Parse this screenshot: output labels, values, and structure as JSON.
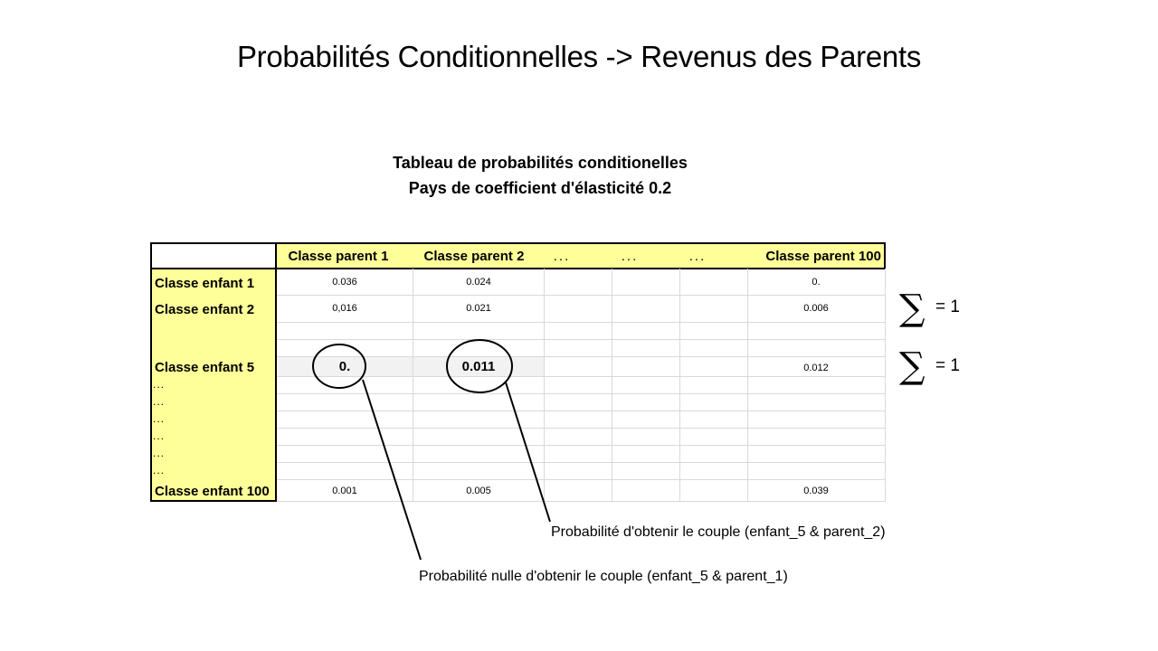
{
  "slide": {
    "title": "Probabilités Conditionnelles -> Revenus des Parents"
  },
  "table": {
    "caption_line1": "Tableau de probabilités conditionelles",
    "caption_line2": "Pays de coefficient d'élasticité   0.2",
    "column_headers": [
      "Classe parent 1",
      "Classe parent 2",
      "...",
      "...",
      "...",
      "Classe parent 100"
    ],
    "rows": {
      "r1": {
        "label": "Classe enfant 1",
        "p1": "0.036",
        "p2": "0.024",
        "p100": "0."
      },
      "r2": {
        "label": "Classe enfant 2",
        "p1": "0,016",
        "p2": "0.021",
        "p100": "0.006"
      },
      "r5": {
        "label": "Classe enfant 5",
        "p1": "0.",
        "p2": "0.011",
        "p100": "0.012"
      },
      "r100": {
        "label": "Classe enfant 100",
        "p1": "0.001",
        "p2": "0.005",
        "p100": "0.039"
      }
    },
    "ellipsis": "..."
  },
  "sums": {
    "symbol": "∑",
    "row2": "= 1",
    "row5": "= 1"
  },
  "annotations": {
    "parent2": "Probabilité d'obtenir le couple (enfant_5 & parent_2)",
    "parent1": "Probabilité nulle d'obtenir le couple (enfant_5 & parent_1)"
  },
  "colors": {
    "header_fill": "#ffff99",
    "highlight_row": "#f2f2f2",
    "grid": "#d9d9d9"
  }
}
